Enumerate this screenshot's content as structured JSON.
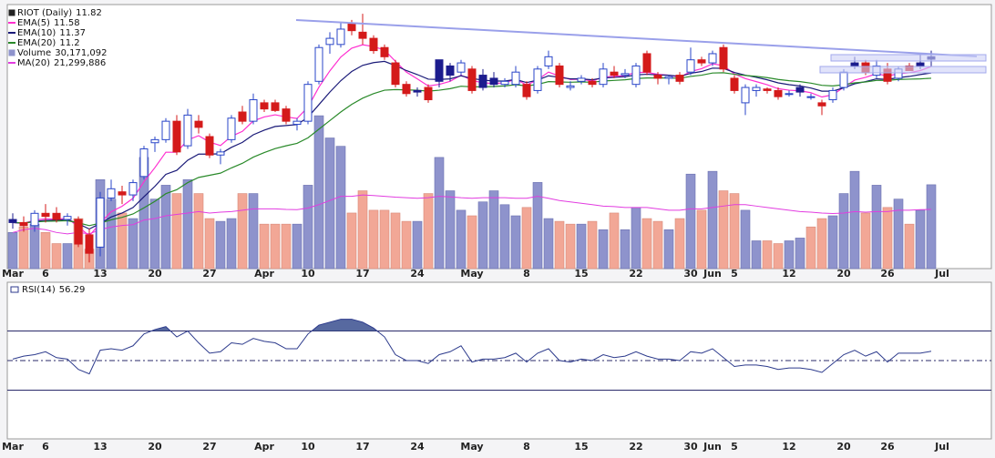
{
  "chart_data": {
    "type": "candlestick",
    "title": "RIOT (Daily)",
    "categories": [
      "Mar",
      null,
      null,
      "6",
      null,
      null,
      null,
      null,
      "13",
      null,
      null,
      null,
      null,
      "20",
      null,
      null,
      null,
      null,
      "27",
      null,
      null,
      null,
      null,
      "Apr",
      null,
      null,
      null,
      "10",
      null,
      null,
      null,
      null,
      "17",
      null,
      null,
      null,
      null,
      "24",
      null,
      null,
      null,
      null,
      "May",
      null,
      null,
      null,
      null,
      "8",
      null,
      null,
      null,
      null,
      "15",
      null,
      null,
      null,
      null,
      "22",
      null,
      null,
      null,
      null,
      "30",
      null,
      "Jun",
      null,
      "5",
      null,
      null,
      null,
      null,
      "12",
      null,
      null,
      null,
      null,
      "20",
      null,
      null,
      null,
      "26",
      null,
      null,
      null,
      null,
      "Jul"
    ],
    "open": [
      6.6,
      6.5,
      6.4,
      6.8,
      6.8,
      6.6,
      6.6,
      6.1,
      5.7,
      7.3,
      7.5,
      7.4,
      8.0,
      9.1,
      9.2,
      9.8,
      9.0,
      9.8,
      9.3,
      8.7,
      9.2,
      10.1,
      9.8,
      10.4,
      10.4,
      10.2,
      9.7,
      9.8,
      11.1,
      12.3,
      12.3,
      13.0,
      12.7,
      12.5,
      12.2,
      11.7,
      11.0,
      10.8,
      10.9,
      11.8,
      11.6,
      11.4,
      11.5,
      11.3,
      11.2,
      11.0,
      11.0,
      11.0,
      10.8,
      11.6,
      11.6,
      10.9,
      11.1,
      11.1,
      11.0,
      11.4,
      11.3,
      11.0,
      12.0,
      11.3,
      11.2,
      11.3,
      11.4,
      11.8,
      11.7,
      12.2,
      11.2,
      10.4,
      10.8,
      10.85,
      10.8,
      10.7,
      10.9,
      10.6,
      10.4,
      10.5,
      10.9,
      11.7,
      11.7,
      11.3,
      11.5,
      11.2,
      11.6,
      11.7,
      11.9,
      null
    ],
    "high": [
      6.8,
      6.7,
      6.9,
      7.1,
      7.0,
      6.8,
      6.7,
      6.3,
      7.5,
      7.9,
      7.7,
      7.9,
      9.0,
      9.3,
      9.9,
      10.0,
      10.2,
      10.0,
      9.4,
      8.9,
      10.0,
      10.3,
      10.7,
      10.5,
      10.5,
      10.3,
      9.9,
      11.1,
      12.3,
      12.7,
      13.0,
      13.1,
      13.3,
      12.6,
      12.3,
      11.8,
      11.1,
      10.9,
      11.0,
      11.8,
      11.7,
      11.8,
      11.6,
      11.5,
      11.4,
      11.2,
      11.6,
      11.1,
      11.6,
      12.1,
      11.7,
      11.1,
      11.3,
      11.2,
      11.7,
      11.6,
      11.5,
      11.7,
      12.1,
      11.4,
      11.3,
      11.4,
      12.2,
      11.9,
      12.1,
      12.3,
      11.3,
      11.0,
      11.0,
      10.9,
      10.9,
      10.8,
      11.0,
      10.7,
      10.5,
      10.9,
      11.5,
      11.9,
      11.8,
      11.8,
      11.7,
      11.6,
      11.7,
      12.0,
      12.1,
      null
    ],
    "low": [
      6.3,
      6.2,
      6.2,
      6.5,
      6.5,
      6.4,
      5.7,
      5.2,
      5.4,
      7.2,
      7.1,
      7.2,
      7.9,
      8.8,
      9.1,
      8.7,
      8.9,
      9.4,
      8.6,
      8.4,
      9.1,
      9.7,
      9.7,
      10.1,
      10.1,
      9.7,
      9.5,
      9.7,
      11.0,
      12.0,
      12.2,
      12.6,
      12.3,
      12.0,
      11.8,
      10.9,
      10.6,
      10.6,
      10.4,
      10.9,
      11.1,
      11.3,
      10.7,
      10.8,
      10.9,
      10.9,
      10.9,
      10.5,
      10.7,
      11.5,
      10.9,
      10.8,
      11.0,
      10.9,
      10.9,
      11.2,
      11.2,
      10.9,
      11.3,
      11.0,
      11.0,
      11.0,
      11.3,
      11.6,
      11.6,
      11.4,
      10.7,
      10.0,
      10.6,
      10.7,
      10.5,
      10.6,
      10.6,
      10.5,
      10.0,
      10.4,
      10.8,
      11.5,
      11.3,
      11.2,
      11.0,
      11.1,
      11.45,
      11.5,
      11.6,
      null
    ],
    "close": [
      6.5,
      6.4,
      6.8,
      6.7,
      6.6,
      6.7,
      5.8,
      5.5,
      7.3,
      7.6,
      7.4,
      7.8,
      8.9,
      9.2,
      9.8,
      8.8,
      10.0,
      9.6,
      8.7,
      8.8,
      9.9,
      9.8,
      10.5,
      10.2,
      10.15,
      9.8,
      9.8,
      11.0,
      12.2,
      12.5,
      12.8,
      12.75,
      12.5,
      12.1,
      11.9,
      11.0,
      10.7,
      10.75,
      10.5,
      11.1,
      11.3,
      11.7,
      10.8,
      10.9,
      11.0,
      11.1,
      11.4,
      10.6,
      11.5,
      11.9,
      11.0,
      10.95,
      11.2,
      11.0,
      11.5,
      11.3,
      11.35,
      11.6,
      11.4,
      11.2,
      11.25,
      11.1,
      11.8,
      11.7,
      12.0,
      11.5,
      10.8,
      10.9,
      10.9,
      10.8,
      10.6,
      10.7,
      10.75,
      10.6,
      10.3,
      10.8,
      11.4,
      11.6,
      11.4,
      11.6,
      11.1,
      11.5,
      11.45,
      11.6,
      11.82,
      null
    ],
    "ylim": [
      5,
      13.6
    ],
    "candle_colors": {
      "up": "#2a46c8",
      "hollow_fill": "#ffffff",
      "down": "#d41a1a",
      "down_above_prior": "#1c1c8e"
    },
    "overlays": [
      {
        "name": "EMA(5)",
        "color": "#ff2fd0",
        "values": [
          6.5,
          6.47,
          6.58,
          6.62,
          6.61,
          6.64,
          6.36,
          6.07,
          6.48,
          6.85,
          7.03,
          7.29,
          7.83,
          8.29,
          8.79,
          8.79,
          9.19,
          9.33,
          9.12,
          9.01,
          9.31,
          9.47,
          9.81,
          9.94,
          10.01,
          9.94,
          9.89,
          10.26,
          10.91,
          11.44,
          11.89,
          12.18,
          12.29,
          12.23,
          12.12,
          11.75,
          11.4,
          11.18,
          10.95,
          11.0,
          11.1,
          11.3,
          11.13,
          11.05,
          11.03,
          11.05,
          11.17,
          10.98,
          11.15,
          11.4,
          11.27,
          11.16,
          11.17,
          11.11,
          11.24,
          11.26,
          11.29,
          11.39,
          11.39,
          11.33,
          11.3,
          11.23,
          11.42,
          11.51,
          11.67,
          11.61,
          11.34,
          11.19,
          11.09,
          10.99,
          10.86,
          10.81,
          10.79,
          10.73,
          10.59,
          10.66,
          10.91,
          11.14,
          11.23,
          11.35,
          11.27,
          11.35,
          11.38,
          11.45,
          11.58,
          null
        ]
      },
      {
        "name": "EMA(10)",
        "color": "#1a1a78",
        "values": [
          6.5,
          6.48,
          6.54,
          6.57,
          6.58,
          6.6,
          6.46,
          6.29,
          6.47,
          6.68,
          6.81,
          6.99,
          7.34,
          7.68,
          8.07,
          8.2,
          8.53,
          8.73,
          8.73,
          8.74,
          8.95,
          9.11,
          9.36,
          9.51,
          9.63,
          9.66,
          9.69,
          9.93,
          10.34,
          10.75,
          11.12,
          11.42,
          11.62,
          11.71,
          11.75,
          11.61,
          11.45,
          11.32,
          11.17,
          11.16,
          11.18,
          11.28,
          11.19,
          11.14,
          11.11,
          11.11,
          11.16,
          11.06,
          11.14,
          11.28,
          11.23,
          11.18,
          11.18,
          11.15,
          11.21,
          11.23,
          11.25,
          11.31,
          11.33,
          11.31,
          11.3,
          11.26,
          11.36,
          11.42,
          11.53,
          11.52,
          11.39,
          11.3,
          11.23,
          11.15,
          11.05,
          10.99,
          10.95,
          10.88,
          10.78,
          10.78,
          10.89,
          11.02,
          11.09,
          11.18,
          11.16,
          11.22,
          11.26,
          11.32,
          11.37,
          null
        ]
      },
      {
        "name": "EMA(20)",
        "color": "#2a8a2a",
        "values": [
          6.5,
          6.49,
          6.52,
          6.54,
          6.55,
          6.56,
          6.49,
          6.4,
          6.48,
          6.59,
          6.67,
          6.78,
          6.98,
          7.19,
          7.44,
          7.57,
          7.8,
          7.97,
          8.04,
          8.11,
          8.28,
          8.43,
          8.63,
          8.78,
          8.91,
          9.0,
          9.08,
          9.26,
          9.54,
          9.82,
          10.1,
          10.35,
          10.55,
          10.7,
          10.81,
          10.83,
          10.82,
          10.81,
          10.78,
          10.81,
          10.86,
          10.94,
          10.92,
          10.92,
          10.93,
          10.95,
          10.99,
          10.95,
          11.0,
          11.09,
          11.08,
          11.07,
          11.08,
          11.07,
          11.11,
          11.13,
          11.15,
          11.19,
          11.21,
          11.21,
          11.21,
          11.2,
          11.26,
          11.3,
          11.37,
          11.38,
          11.33,
          11.29,
          11.26,
          11.22,
          11.16,
          11.12,
          11.09,
          11.04,
          10.97,
          10.95,
          10.99,
          11.05,
          11.08,
          11.13,
          11.13,
          11.16,
          11.17,
          11.18,
          11.2,
          null
        ]
      }
    ],
    "volume": {
      "name": "Volume",
      "last_label": "30,171,092",
      "ylim": [
        0,
        95000000
      ],
      "up_color": "#8e93cc",
      "down_color": "#f2a796",
      "values": [
        13000000,
        15000000,
        16000000,
        13000000,
        9000000,
        9000000,
        18000000,
        7000000,
        32000000,
        25000000,
        20000000,
        18000000,
        40000000,
        25000000,
        30000000,
        27000000,
        32000000,
        27000000,
        18000000,
        17000000,
        18000000,
        27000000,
        27000000,
        16000000,
        16000000,
        16000000,
        16000000,
        30000000,
        55000000,
        47000000,
        44000000,
        20000000,
        28000000,
        21000000,
        21000000,
        20000000,
        17000000,
        17000000,
        27000000,
        40000000,
        28000000,
        21000000,
        19000000,
        24000000,
        28000000,
        23000000,
        19000000,
        22000000,
        31000000,
        18000000,
        17000000,
        16000000,
        16000000,
        17000000,
        14000000,
        20000000,
        14000000,
        22000000,
        18000000,
        17000000,
        14000000,
        18000000,
        34000000,
        21000000,
        35000000,
        28000000,
        27000000,
        21000000,
        10000000,
        10000000,
        9000000,
        10000000,
        11000000,
        15000000,
        18000000,
        19000000,
        27000000,
        35000000,
        20000000,
        30000000,
        22000000,
        25000000,
        16000000,
        21000000,
        30171092,
        null
      ],
      "ma": {
        "name": "MA(20)",
        "color": "#e23ce0",
        "last_label": "21,299,886",
        "values": [
          13000000,
          14000000,
          14500000,
          14000000,
          13000000,
          12500000,
          13000000,
          12500000,
          14000000,
          15000000,
          15500000,
          15800000,
          17500000,
          18000000,
          19000000,
          19500000,
          20000000,
          20500000,
          20000000,
          20300000,
          20500000,
          21000000,
          21500000,
          21500000,
          21500000,
          21300000,
          21200000,
          21800000,
          23000000,
          24500000,
          26000000,
          26000000,
          26500000,
          26300000,
          26000000,
          25700000,
          25500000,
          25300000,
          25500000,
          26000000,
          25800000,
          25500000,
          25300000,
          25500000,
          25500000,
          25500000,
          25300000,
          25300000,
          26000000,
          25300000,
          24500000,
          24000000,
          23500000,
          23000000,
          22500000,
          22300000,
          22000000,
          22000000,
          22000000,
          21500000,
          21000000,
          21000000,
          21500000,
          21500000,
          22000000,
          22500000,
          23000000,
          23000000,
          22500000,
          22000000,
          21500000,
          21000000,
          20500000,
          20300000,
          20000000,
          19800000,
          20000000,
          20500000,
          20300000,
          20500000,
          20500000,
          21000000,
          21000000,
          21200000,
          21299886,
          null
        ]
      }
    },
    "rsi": {
      "name": "RSI(14)",
      "color": "#2c3a8c",
      "fill_color": "#3a4f8f",
      "ylim": [
        -3,
        103
      ],
      "levels": [
        30,
        50,
        70
      ],
      "values": [
        51,
        53,
        54,
        56,
        52,
        51,
        44,
        41,
        57,
        58,
        57,
        60,
        68,
        71,
        73,
        66,
        70,
        62,
        55,
        56,
        62,
        61,
        65,
        63,
        62,
        58,
        58,
        68,
        74,
        76,
        78,
        78,
        76,
        72,
        66,
        54,
        50,
        50,
        48,
        54,
        56,
        60,
        49,
        51,
        51,
        52,
        55,
        49,
        55,
        58,
        50,
        49,
        51,
        50,
        54,
        52,
        53,
        56,
        53,
        51,
        51,
        50,
        56,
        55,
        58,
        52,
        46,
        47,
        47,
        46,
        44,
        45,
        45,
        44,
        42,
        48,
        54,
        57,
        53,
        56,
        49,
        55,
        55,
        55,
        56.29,
        null
      ]
    }
  }
}
